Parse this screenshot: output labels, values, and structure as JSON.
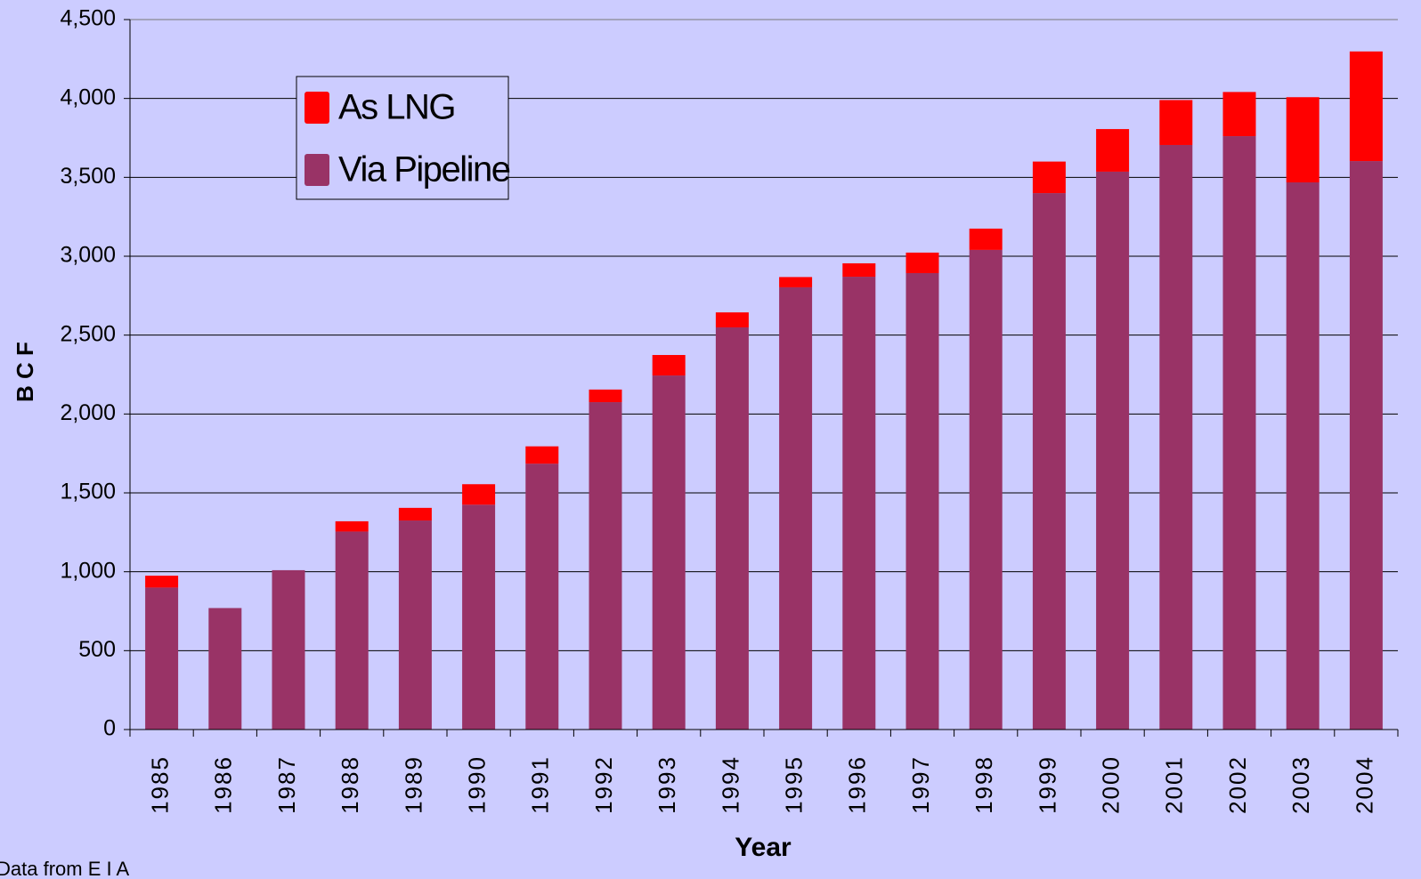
{
  "chart_data": {
    "type": "bar",
    "stacked": true,
    "y_label": "B C F",
    "x_label": "Year",
    "note": "Data from E I A",
    "categories": [
      "1985",
      "1986",
      "1987",
      "1988",
      "1989",
      "1990",
      "1991",
      "1992",
      "1993",
      "1994",
      "1995",
      "1996",
      "1997",
      "1998",
      "1999",
      "2000",
      "2001",
      "2002",
      "2003",
      "2004"
    ],
    "series": [
      {
        "name": "Via Pipeline",
        "color": "#993366",
        "values": [
          900,
          770,
          1010,
          1255,
          1325,
          1425,
          1685,
          2075,
          2244,
          2549,
          2803,
          2870,
          2893,
          3040,
          3400,
          3536,
          3705,
          3761,
          3468,
          3603
        ]
      },
      {
        "name": "As LNG",
        "color": "#ff0000",
        "values": [
          75,
          0,
          0,
          65,
          80,
          130,
          110,
          80,
          130,
          95,
          65,
          85,
          130,
          135,
          200,
          270,
          285,
          280,
          540,
          695
        ]
      }
    ],
    "ylim": [
      0,
      4500
    ],
    "yticks": [
      0,
      500,
      {
        "value": 1000,
        "label": "1,000"
      },
      {
        "value": 1500,
        "label": "1,500"
      },
      {
        "value": 2000,
        "label": "2,000"
      },
      {
        "value": 2500,
        "label": "2,500"
      },
      {
        "value": 3000,
        "label": "3,000"
      },
      {
        "value": 3500,
        "label": "3,500"
      },
      {
        "value": 4000,
        "label": "4,000"
      },
      {
        "value": 4500,
        "label": "4,500"
      }
    ],
    "grid": true
  }
}
